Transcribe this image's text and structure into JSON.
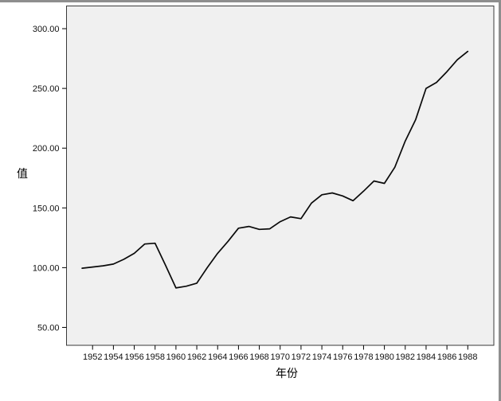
{
  "figure": {
    "y_axis_title": "值",
    "x_axis_title": "年份"
  },
  "chart_data": {
    "type": "line",
    "title": "",
    "xlabel": "年份",
    "ylabel": "值",
    "x": [
      1951,
      1952,
      1953,
      1954,
      1955,
      1956,
      1957,
      1958,
      1959,
      1960,
      1961,
      1962,
      1963,
      1964,
      1965,
      1966,
      1967,
      1968,
      1969,
      1970,
      1971,
      1972,
      1973,
      1974,
      1975,
      1976,
      1977,
      1978,
      1979,
      1980,
      1981,
      1982,
      1983,
      1984,
      1985,
      1986,
      1987,
      1988
    ],
    "series": [
      {
        "name": "值",
        "values": [
          99.5,
          100.5,
          101.5,
          103,
          107,
          112,
          119.8,
          120.4,
          102,
          83,
          84.5,
          87,
          100,
          112,
          122,
          133,
          134.5,
          132,
          132.5,
          138.5,
          142.5,
          141,
          154,
          161,
          162.5,
          160,
          156,
          164,
          172.5,
          170.5,
          184,
          206,
          224,
          250,
          255,
          264,
          274,
          281
        ]
      }
    ],
    "xlim": [
      1949.5,
      1990.5
    ],
    "ylim": [
      35,
      319
    ],
    "x_ticks": [
      1952,
      1954,
      1956,
      1958,
      1960,
      1962,
      1964,
      1966,
      1968,
      1970,
      1972,
      1974,
      1976,
      1978,
      1980,
      1982,
      1984,
      1986,
      1988
    ],
    "x_tick_labels": [
      "1952",
      "1954",
      "1956",
      "1958",
      "1960",
      "1962",
      "1964",
      "1966",
      "1968",
      "1970",
      "1972",
      "1974",
      "1976",
      "1978",
      "1980",
      "1982",
      "1984",
      "1986",
      "1988"
    ],
    "y_ticks": [
      50,
      100,
      150,
      200,
      250,
      300
    ],
    "y_tick_labels": [
      "50.00",
      "100.00",
      "150.00",
      "200.00",
      "250.00",
      "300.00"
    ],
    "grid": false,
    "legend_position": "none",
    "line_color": "#0a0a0a",
    "panel_bg": "#f0f0f0",
    "panel_border_color": "#3a3a3a",
    "tick_color": "#000000",
    "tick_label_color": "#111111"
  }
}
